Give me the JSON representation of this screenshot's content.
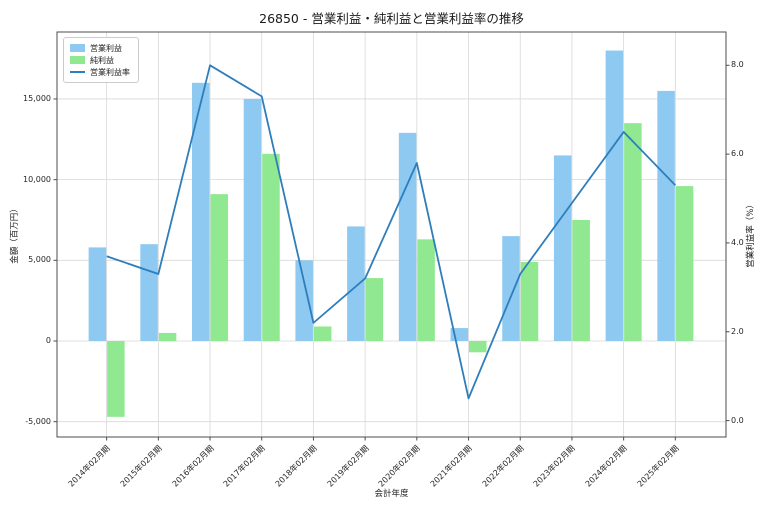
{
  "chart_data": {
    "type": "bar",
    "title": "26850 - 営業利益・純利益と営業利益率の推移",
    "xlabel": "会計年度",
    "ylabel_left": "金額（百万円）",
    "ylabel_right": "営業利益率（%）",
    "categories": [
      "2014年02月期",
      "2015年02月期",
      "2016年02月期",
      "2017年02月期",
      "2018年02月期",
      "2019年02月期",
      "2020年02月期",
      "2021年02月期",
      "2022年02月期",
      "2023年02月期",
      "2024年02月期",
      "2025年02月期"
    ],
    "series": [
      {
        "name": "営業利益",
        "type": "bar",
        "axis": "left",
        "color": "#8dc9f0",
        "values": [
          5800,
          6000,
          16000,
          15000,
          5000,
          7100,
          12900,
          800,
          6500,
          11500,
          18000,
          15500
        ]
      },
      {
        "name": "純利益",
        "type": "bar",
        "axis": "left",
        "color": "#90e890",
        "values": [
          -4700,
          500,
          9100,
          11600,
          900,
          3900,
          6300,
          -700,
          4900,
          7500,
          13500,
          9600
        ]
      },
      {
        "name": "営業利益率",
        "type": "line",
        "axis": "right",
        "color": "#2e7ebc",
        "values": [
          3.7,
          3.3,
          8.0,
          7.3,
          2.2,
          3.2,
          5.8,
          0.5,
          3.3,
          4.9,
          6.5,
          5.3
        ]
      }
    ],
    "left_axis": {
      "tick_labels": [
        "-5,000",
        "0",
        "5,000",
        "10,000",
        "15,000"
      ],
      "tick_values": [
        -5000,
        0,
        5000,
        10000,
        15000
      ],
      "min": -5950,
      "max": 19150
    },
    "right_axis": {
      "tick_labels": [
        "0.0",
        "2.0",
        "4.0",
        "6.0",
        "8.0"
      ],
      "tick_values": [
        0,
        2,
        4,
        6,
        8
      ],
      "min": -0.37,
      "max": 8.75
    },
    "legend_position": "upper left",
    "grid": true
  }
}
